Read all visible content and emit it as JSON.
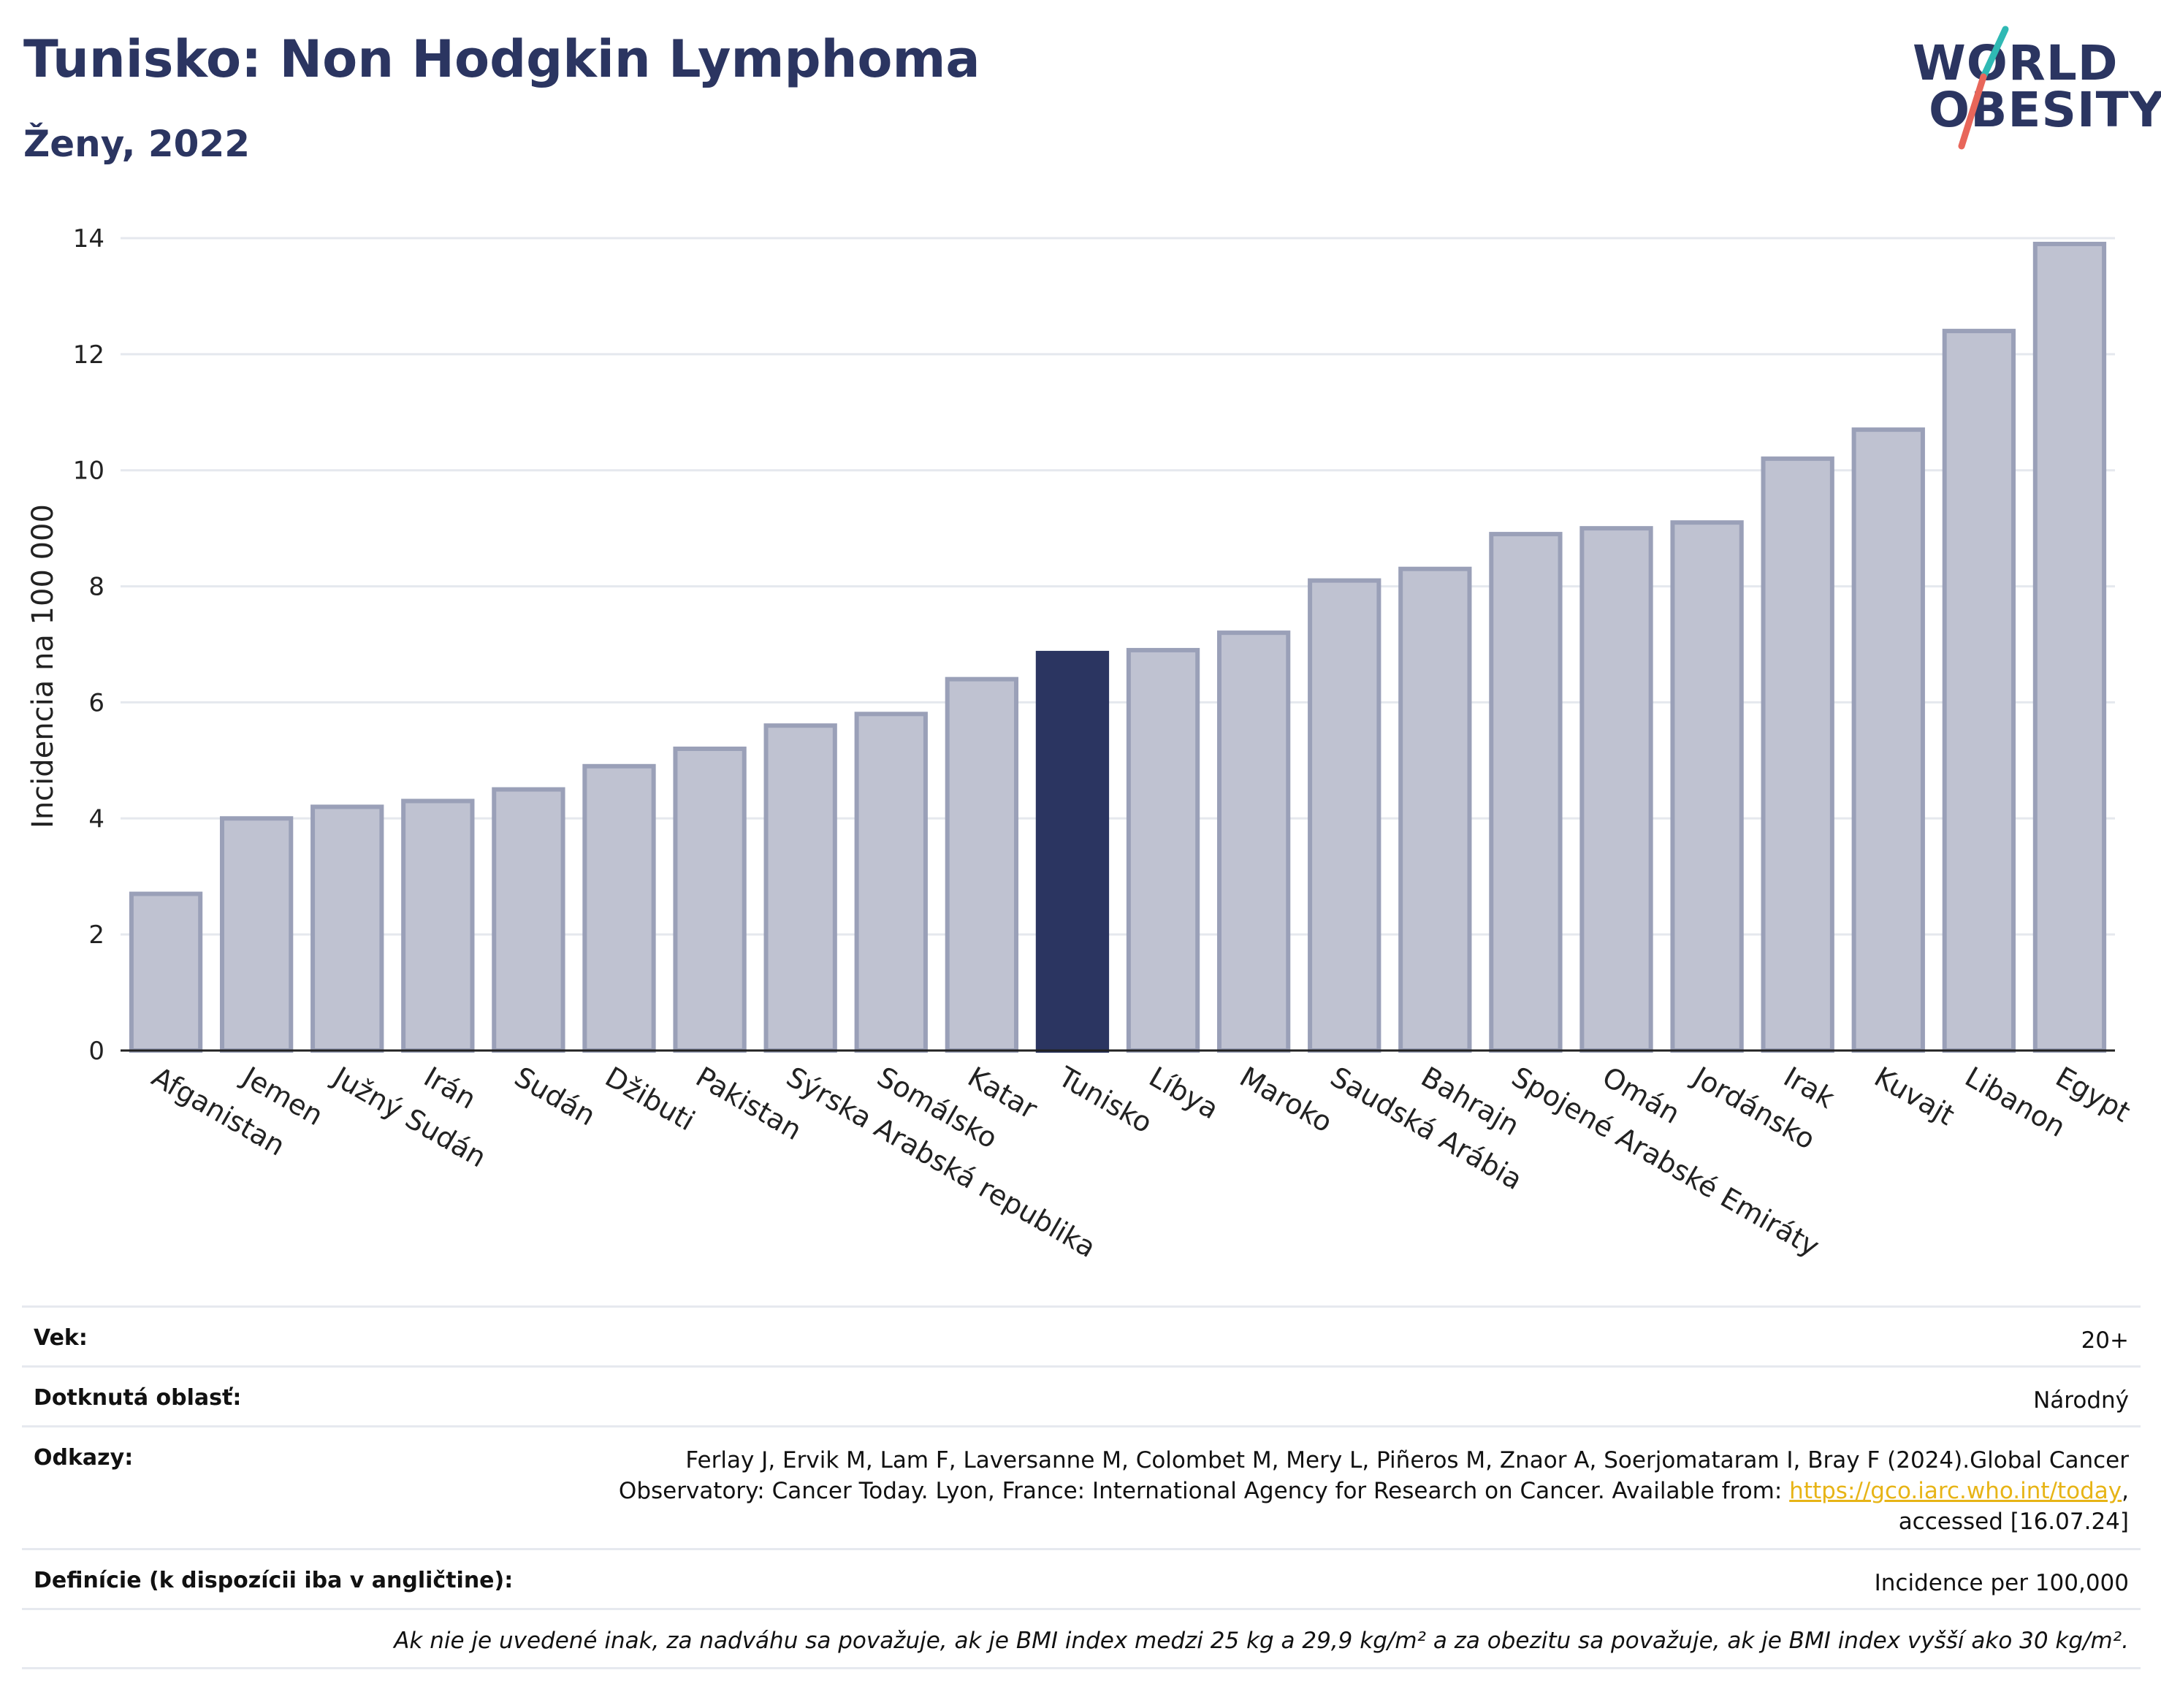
{
  "header": {
    "title": "Tunisko: Non Hodgkin Lymphoma",
    "subtitle": "Ženy, 2022"
  },
  "logo": {
    "line1": "WORLD",
    "line2": "OBESITY"
  },
  "chart_data": {
    "type": "bar",
    "ylabel": "Incidencia na 100 000",
    "ylim": [
      0,
      14
    ],
    "yticks": [
      0,
      2,
      4,
      6,
      8,
      10,
      12,
      14
    ],
    "grid": true,
    "categories": [
      "Afganistan",
      "Jemen",
      "Južný Sudán",
      "Irán",
      "Sudán",
      "Džibuti",
      "Pakistan",
      "Sýrska Arabská republika",
      "Somálsko",
      "Katar",
      "Tunisko",
      "Líbya",
      "Maroko",
      "Saudská Arábia",
      "Bahrajn",
      "Spojené Arabské Emiráty",
      "Omán",
      "Jordánsko",
      "Irak",
      "Kuvajt",
      "Libanon",
      "Egypt"
    ],
    "values": [
      2.7,
      4.0,
      4.2,
      4.3,
      4.5,
      4.9,
      5.2,
      5.6,
      5.8,
      6.4,
      6.85,
      6.9,
      7.2,
      8.1,
      8.3,
      8.9,
      9.0,
      9.1,
      10.2,
      10.7,
      12.4,
      13.9
    ],
    "highlight": "Tunisko",
    "colors": {
      "bar": "#bfc2d1",
      "bar_border": "#9aa0b8",
      "highlight": "#2b3561"
    }
  },
  "info": {
    "age_label": "Vek:",
    "age_value": "20+",
    "area_label": "Dotknutá oblasť:",
    "area_value": "Národný",
    "refs_label": "Odkazy:",
    "refs_line1": "Ferlay J, Ervik M, Lam F, Laversanne M, Colombet M, Mery L, Piñeros M, Znaor A, Soerjomataram I, Bray F (2024).Global Cancer",
    "refs_line2_pre": "Observatory: Cancer Today. Lyon, France: International Agency for Research on Cancer. Available from: ",
    "refs_link": "https://gco.iarc.who.int/today",
    "refs_line2_post": ",",
    "refs_line3": "accessed [16.07.24]",
    "def_label": "Definície (k dispozícii iba v angličtine):",
    "def_value": "Incidence per 100,000",
    "note": "Ak nie je uvedené inak, za nadváhu sa považuje, ak je BMI index medzi 25 kg a 29,9 kg/m² a za obezitu sa považuje, ak je BMI index vyšší ako 30 kg/m²."
  }
}
